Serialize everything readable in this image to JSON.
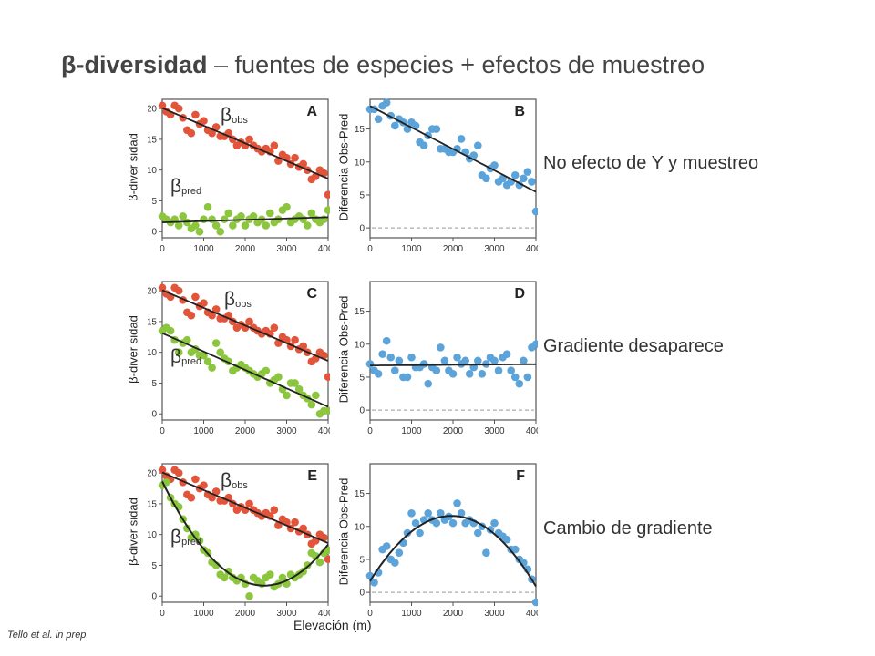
{
  "title": {
    "bold": "β-diversidad",
    "rest": " – fuentes de especies + efectos de muestreo"
  },
  "ylabel_left": "β-diver sidad",
  "ylabel_right": "Diferencia Obs-Pred",
  "xlabel": "Elevación (m)",
  "credit": "Tello et al. in prep.",
  "descriptions": [
    "No efecto de Y y muestreo",
    "Gradiente desaparece",
    "Cambio de gradiente"
  ],
  "colors": {
    "obs": "#e2553a",
    "pred": "#8cc63f",
    "diff": "#5ba3d9",
    "fit": "#222222",
    "zero": "#999999",
    "panel_bg": "#ffffff",
    "panel_border": "#555555"
  },
  "chart_data": [
    {
      "panel": "A",
      "type": "scatter",
      "xlim": [
        0,
        4000
      ],
      "ylim": [
        -1,
        21.5
      ],
      "xticks": [
        0,
        1000,
        2000,
        3000,
        4000
      ],
      "yticks": [
        0,
        5,
        10,
        15,
        20
      ],
      "series_labels": [
        {
          "base": "β",
          "sub": "obs"
        },
        {
          "base": "β",
          "sub": "pred"
        }
      ],
      "series": [
        {
          "key": "obs",
          "fit": "linear",
          "x": [
            0,
            100,
            200,
            300,
            400,
            500,
            600,
            700,
            800,
            900,
            1000,
            1100,
            1200,
            1300,
            1400,
            1500,
            1600,
            1700,
            1800,
            1900,
            2000,
            2100,
            2200,
            2300,
            2400,
            2500,
            2600,
            2700,
            2800,
            2900,
            3000,
            3100,
            3200,
            3300,
            3400,
            3500,
            3600,
            3700,
            3800,
            3900,
            4000
          ],
          "y": [
            20.5,
            19.5,
            19,
            20.5,
            20,
            18.5,
            16.5,
            16,
            19,
            17.5,
            18,
            16.5,
            16,
            17,
            15.5,
            15.5,
            16,
            15,
            14,
            14.5,
            14,
            15,
            14,
            13.5,
            13,
            13.5,
            13,
            14,
            11.5,
            12.5,
            12,
            11,
            12,
            10.5,
            11,
            10,
            8.5,
            9,
            10,
            9.5,
            6
          ]
        },
        {
          "key": "pred",
          "fit": "linear",
          "x": [
            0,
            100,
            200,
            300,
            400,
            500,
            600,
            700,
            800,
            900,
            1000,
            1100,
            1200,
            1300,
            1400,
            1500,
            1600,
            1700,
            1800,
            1900,
            2000,
            2100,
            2200,
            2300,
            2400,
            2500,
            2600,
            2700,
            2800,
            2900,
            3000,
            3100,
            3200,
            3300,
            3400,
            3500,
            3600,
            3700,
            3800,
            3900,
            4000
          ],
          "y": [
            2.5,
            2,
            1.5,
            2,
            1,
            2.5,
            1.5,
            0.5,
            1,
            0,
            2,
            4,
            2,
            1,
            0,
            2,
            3,
            1,
            2,
            2.5,
            1,
            2,
            2.5,
            1.5,
            2,
            1,
            3,
            1.5,
            2,
            3.5,
            4,
            1.5,
            2,
            2.5,
            2,
            1,
            3,
            2,
            1.5,
            2,
            3.5
          ]
        }
      ]
    },
    {
      "panel": "B",
      "type": "scatter",
      "xlim": [
        0,
        4000
      ],
      "ylim": [
        -1.5,
        19.5
      ],
      "xticks": [
        0,
        1000,
        2000,
        3000,
        4000
      ],
      "yticks": [
        0,
        5,
        10,
        15
      ],
      "series": [
        {
          "key": "diff",
          "fit": "linear",
          "x": [
            0,
            100,
            200,
            300,
            400,
            500,
            600,
            700,
            800,
            900,
            1000,
            1100,
            1200,
            1300,
            1400,
            1500,
            1600,
            1700,
            1800,
            1900,
            2000,
            2100,
            2200,
            2300,
            2400,
            2500,
            2600,
            2700,
            2800,
            2900,
            3000,
            3100,
            3200,
            3300,
            3400,
            3500,
            3600,
            3700,
            3800,
            3900,
            4000
          ],
          "y": [
            18,
            18,
            16.5,
            18.5,
            19,
            17,
            15.5,
            16.5,
            16,
            15,
            16,
            15.5,
            13,
            12.5,
            14,
            15,
            15,
            12,
            12,
            11.5,
            11.5,
            12,
            13.5,
            11.5,
            10.5,
            11,
            12.5,
            8,
            7.5,
            9,
            9.5,
            7,
            7.5,
            6.5,
            7,
            8,
            6.5,
            7.5,
            8.5,
            7,
            2.5
          ]
        }
      ]
    },
    {
      "panel": "C",
      "type": "scatter",
      "xlim": [
        0,
        4000
      ],
      "ylim": [
        -1,
        21.5
      ],
      "xticks": [
        0,
        1000,
        2000,
        3000,
        4000
      ],
      "yticks": [
        0,
        5,
        10,
        15,
        20
      ],
      "series_labels": [
        {
          "base": "β",
          "sub": "obs"
        },
        {
          "base": "β",
          "sub": "pred"
        }
      ],
      "series": [
        {
          "key": "obs",
          "fit": "linear",
          "x": [
            0,
            100,
            200,
            300,
            400,
            500,
            600,
            700,
            800,
            900,
            1000,
            1100,
            1200,
            1300,
            1400,
            1500,
            1600,
            1700,
            1800,
            1900,
            2000,
            2100,
            2200,
            2300,
            2400,
            2500,
            2600,
            2700,
            2800,
            2900,
            3000,
            3100,
            3200,
            3300,
            3400,
            3500,
            3600,
            3700,
            3800,
            3900,
            4000
          ],
          "y": [
            20.5,
            19.5,
            19,
            20.5,
            20,
            18.5,
            16.5,
            16,
            19,
            17.5,
            18,
            16.5,
            16,
            17,
            15.5,
            15.5,
            16,
            15,
            14,
            14.5,
            14,
            15,
            14,
            13.5,
            13,
            13.5,
            13,
            14,
            11.5,
            12.5,
            12,
            11,
            12,
            10.5,
            11,
            10,
            8.5,
            9,
            10,
            9.5,
            6
          ]
        },
        {
          "key": "pred",
          "fit": "linear",
          "x": [
            0,
            100,
            200,
            300,
            400,
            500,
            600,
            700,
            800,
            900,
            1000,
            1100,
            1200,
            1300,
            1400,
            1500,
            1600,
            1700,
            1800,
            1900,
            2000,
            2100,
            2200,
            2300,
            2400,
            2500,
            2600,
            2700,
            2800,
            2900,
            3000,
            3100,
            3200,
            3300,
            3400,
            3500,
            3600,
            3700,
            3800,
            3900,
            4000
          ],
          "y": [
            13.5,
            14,
            13.5,
            12,
            10,
            11.5,
            12,
            10,
            10.5,
            9.5,
            9.5,
            8.5,
            7.5,
            11.5,
            10,
            9,
            8.5,
            7,
            7.5,
            8,
            7.5,
            7,
            6.5,
            6,
            6.5,
            7,
            5,
            5.5,
            6,
            4,
            3,
            5,
            5,
            4,
            3,
            2.5,
            1.5,
            3,
            0,
            0.5,
            0.5
          ]
        }
      ]
    },
    {
      "panel": "D",
      "type": "scatter",
      "xlim": [
        0,
        4000
      ],
      "ylim": [
        -1.5,
        19.5
      ],
      "xticks": [
        0,
        1000,
        2000,
        3000,
        4000
      ],
      "yticks": [
        0,
        5,
        10,
        15
      ],
      "series": [
        {
          "key": "diff",
          "fit": "linear",
          "x": [
            0,
            100,
            200,
            300,
            400,
            500,
            600,
            700,
            800,
            900,
            1000,
            1100,
            1200,
            1300,
            1400,
            1500,
            1600,
            1700,
            1800,
            1900,
            2000,
            2100,
            2200,
            2300,
            2400,
            2500,
            2600,
            2700,
            2800,
            2900,
            3000,
            3100,
            3200,
            3300,
            3400,
            3500,
            3600,
            3700,
            3800,
            3900,
            4000
          ],
          "y": [
            7,
            6,
            5.5,
            8.5,
            10.5,
            8,
            6,
            7.5,
            5,
            5,
            8,
            6.5,
            6.5,
            7,
            4,
            6.5,
            6,
            9.5,
            7.5,
            6,
            5.5,
            8,
            7,
            7.5,
            5.5,
            6.5,
            7.5,
            5.5,
            7,
            8,
            7.5,
            6,
            8,
            8.5,
            6,
            5,
            4,
            7.5,
            5,
            9.5,
            10
          ]
        }
      ]
    },
    {
      "panel": "E",
      "type": "scatter",
      "xlim": [
        0,
        4000
      ],
      "ylim": [
        -1,
        21.5
      ],
      "xticks": [
        0,
        1000,
        2000,
        3000,
        4000
      ],
      "yticks": [
        0,
        5,
        10,
        15,
        20
      ],
      "series_labels": [
        {
          "base": "β",
          "sub": "obs"
        },
        {
          "base": "β",
          "sub": "pred"
        }
      ],
      "series": [
        {
          "key": "obs",
          "fit": "linear",
          "x": [
            0,
            100,
            200,
            300,
            400,
            500,
            600,
            700,
            800,
            900,
            1000,
            1100,
            1200,
            1300,
            1400,
            1500,
            1600,
            1700,
            1800,
            1900,
            2000,
            2100,
            2200,
            2300,
            2400,
            2500,
            2600,
            2700,
            2800,
            2900,
            3000,
            3100,
            3200,
            3300,
            3400,
            3500,
            3600,
            3700,
            3800,
            3900,
            4000
          ],
          "y": [
            20.5,
            19.5,
            19,
            20.5,
            20,
            18.5,
            16.5,
            16,
            19,
            17.5,
            18,
            16.5,
            16,
            17,
            15.5,
            15.5,
            16,
            15,
            14,
            14.5,
            14,
            15,
            14,
            13.5,
            13,
            13.5,
            13,
            14,
            11.5,
            12.5,
            12,
            11,
            12,
            10.5,
            11,
            10,
            8.5,
            9,
            10,
            9.5,
            6
          ]
        },
        {
          "key": "pred",
          "fit": "quadratic",
          "x": [
            0,
            100,
            200,
            300,
            400,
            500,
            600,
            700,
            800,
            900,
            1000,
            1100,
            1200,
            1300,
            1400,
            1500,
            1600,
            1700,
            1800,
            1900,
            2000,
            2100,
            2200,
            2300,
            2400,
            2500,
            2600,
            2700,
            2800,
            2900,
            3000,
            3100,
            3200,
            3300,
            3400,
            3500,
            3600,
            3700,
            3800,
            3900,
            4000
          ],
          "y": [
            18,
            18.5,
            16,
            15,
            14.5,
            12.5,
            11,
            9.5,
            10,
            9,
            7.5,
            7,
            5.5,
            5,
            3.5,
            3,
            4,
            3,
            2.5,
            3,
            2,
            0,
            3,
            2.5,
            2,
            3,
            3.5,
            1.5,
            2,
            3,
            2,
            3.5,
            3,
            3.5,
            4,
            5,
            7,
            6.5,
            5.5,
            7,
            7.5
          ]
        }
      ]
    },
    {
      "panel": "F",
      "type": "scatter",
      "xlim": [
        0,
        4000
      ],
      "ylim": [
        -1.5,
        19.5
      ],
      "xticks": [
        0,
        1000,
        2000,
        3000,
        4000
      ],
      "yticks": [
        0,
        5,
        10,
        15
      ],
      "series": [
        {
          "key": "diff",
          "fit": "quadratic",
          "x": [
            0,
            100,
            200,
            300,
            400,
            500,
            600,
            700,
            800,
            900,
            1000,
            1100,
            1200,
            1300,
            1400,
            1500,
            1600,
            1700,
            1800,
            1900,
            2000,
            2100,
            2200,
            2300,
            2400,
            2500,
            2600,
            2700,
            2800,
            2900,
            3000,
            3100,
            3200,
            3300,
            3400,
            3500,
            3600,
            3700,
            3800,
            3900,
            4000
          ],
          "y": [
            2.5,
            1.5,
            3,
            6.5,
            7,
            5,
            4.5,
            6,
            7.5,
            9,
            12,
            10.5,
            9,
            11,
            12,
            11,
            10.5,
            12,
            11,
            11.5,
            10.5,
            13.5,
            12,
            10.5,
            11,
            10.5,
            9,
            10,
            6,
            9.5,
            10.5,
            9,
            8.5,
            8,
            6.5,
            6.5,
            5,
            4.5,
            3.5,
            2,
            -1.5
          ]
        }
      ]
    }
  ]
}
